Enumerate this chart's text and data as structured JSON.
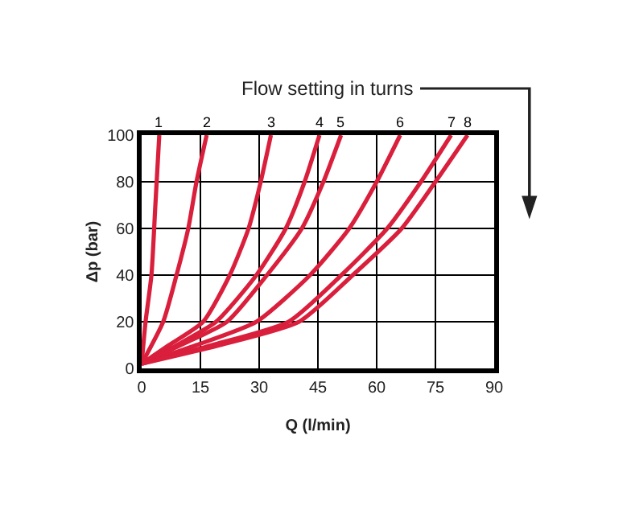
{
  "chart_data": {
    "type": "line",
    "xlabel": "Q (l/min)",
    "ylabel": "Δp (bar)",
    "annotations": [
      "Flow setting in turns"
    ],
    "xlim": [
      0,
      90
    ],
    "ylim": [
      0,
      100
    ],
    "xticks": [
      0,
      15,
      30,
      45,
      60,
      75,
      90
    ],
    "yticks": [
      0,
      20,
      40,
      60,
      80,
      100
    ],
    "grid": true,
    "legend": false,
    "marker": "none",
    "line_style": "solid",
    "series": [
      {
        "name": "1",
        "color": "#d91f3c",
        "x": [
          0,
          1,
          2.5,
          3.5,
          4.5
        ],
        "values": [
          2,
          20,
          40,
          70,
          100
        ]
      },
      {
        "name": "2",
        "color": "#d91f3c",
        "x": [
          0,
          5.5,
          8.9,
          11.9,
          14,
          16.6
        ],
        "values": [
          2,
          20,
          40,
          60,
          80,
          100
        ]
      },
      {
        "name": "3",
        "color": "#d91f3c",
        "x": [
          0,
          7,
          15.7,
          22.5,
          27.3,
          30.4,
          33
        ],
        "values": [
          2,
          10,
          20,
          40,
          60,
          80,
          100
        ]
      },
      {
        "name": "4",
        "color": "#d91f3c",
        "x": [
          0,
          9,
          19,
          29.3,
          36.8,
          41.6,
          45.4
        ],
        "values": [
          2,
          10,
          20,
          40,
          60,
          80,
          100
        ]
      },
      {
        "name": "5",
        "color": "#d91f3c",
        "x": [
          0,
          10,
          21.8,
          32,
          40.9,
          46.4,
          50.9
        ],
        "values": [
          2,
          10,
          20,
          40,
          60,
          80,
          100
        ]
      },
      {
        "name": "6",
        "color": "#d91f3c",
        "x": [
          0,
          14,
          29.3,
          43,
          53,
          60,
          66
        ],
        "values": [
          2,
          10,
          20,
          40,
          60,
          80,
          100
        ]
      },
      {
        "name": "7",
        "color": "#d91f3c",
        "x": [
          0,
          18,
          37.5,
          51,
          62.7,
          71.3,
          79
        ],
        "values": [
          2,
          10,
          20,
          40,
          60,
          80,
          100
        ]
      },
      {
        "name": "8",
        "color": "#d91f3c",
        "x": [
          0,
          20,
          40.2,
          53.9,
          66.4,
          75,
          83.2
        ],
        "values": [
          2,
          10,
          20,
          40,
          60,
          80,
          100
        ]
      }
    ]
  }
}
